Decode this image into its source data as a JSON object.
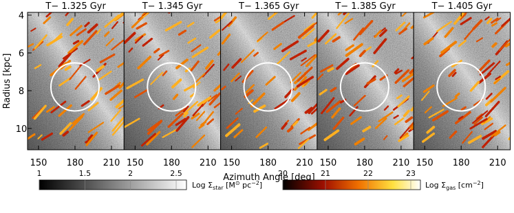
{
  "panels": [
    {
      "title": "T− 1.325 Gyr"
    },
    {
      "title": "T− 1.345 Gyr"
    },
    {
      "title": "T− 1.365 Gyr"
    },
    {
      "title": "T− 1.385 Gyr"
    },
    {
      "title": "T− 1.405 Gyr"
    }
  ],
  "x_axis": {
    "label": "Azimuth Angle [deg]",
    "ticks": [
      150,
      180,
      210
    ]
  },
  "y_axis": {
    "label": "Radius [kpc]",
    "ticks": [
      4,
      6,
      8,
      10
    ]
  },
  "colorbars": [
    {
      "label": [
        "Log Σ",
        "star",
        " [M",
        "⊙",
        " pc",
        "−2",
        "]"
      ],
      "ticks": [
        1,
        1.5,
        2,
        2.5
      ]
    },
    {
      "label": [
        "Log Σ",
        "gas",
        " [cm",
        "−2",
        "]"
      ],
      "ticks": [
        20,
        21,
        22,
        23
      ]
    }
  ]
}
